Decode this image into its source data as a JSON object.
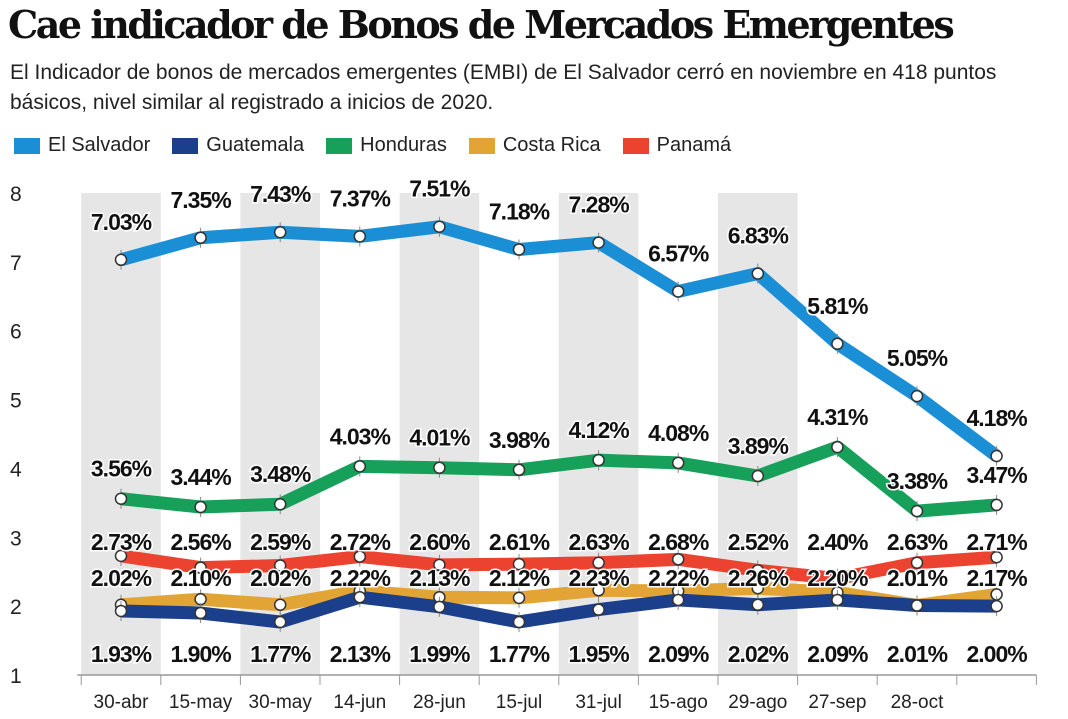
{
  "title": "Cae indicador de Bonos de Mercados Emergentes",
  "subtitle": "El Indicador de bonos de mercados emergentes (EMBI) de El Salvador cerró en noviembre en 418 puntos básicos, nivel similar al registrado a inicios de 2020.",
  "chart_data": {
    "type": "line",
    "title": "Cae indicador de Bonos de Mercados Emergentes",
    "categories": [
      "30-abr",
      "15-may",
      "30-may",
      "14-jun",
      "28-jun",
      "15-jul",
      "31-jul",
      "15-ago",
      "29-ago",
      "27-sep",
      "28-oct",
      ""
    ],
    "ylim": [
      1,
      8
    ],
    "yticks": [
      "1",
      "2",
      "3",
      "4",
      "5",
      "6",
      "7",
      "8"
    ],
    "grid": false,
    "legend": "top",
    "series": [
      {
        "name": "El Salvador",
        "color": "#1b8fd6",
        "values": [
          7.03,
          7.35,
          7.43,
          7.37,
          7.51,
          7.18,
          7.28,
          6.57,
          6.83,
          5.81,
          5.05,
          4.18
        ],
        "labels": [
          "7.03%",
          "7.35%",
          "7.43%",
          "7.37%",
          "7.51%",
          "7.18%",
          "7.28%",
          "6.57%",
          "6.83%",
          "5.81%",
          "5.05%",
          "4.18%"
        ]
      },
      {
        "name": "Guatemala",
        "color": "#1c3f8c",
        "values": [
          1.93,
          1.9,
          1.77,
          2.13,
          1.99,
          1.77,
          1.95,
          2.09,
          2.02,
          2.09,
          2.01,
          2.0
        ],
        "labels": [
          "1.93%",
          "1.90%",
          "1.77%",
          "2.13%",
          "1.99%",
          "1.77%",
          "1.95%",
          "2.09%",
          "2.02%",
          "2.09%",
          "2.01%",
          "2.00%"
        ]
      },
      {
        "name": "Honduras",
        "color": "#17a05a",
        "values": [
          3.56,
          3.44,
          3.48,
          4.03,
          4.01,
          3.98,
          4.12,
          4.08,
          3.89,
          4.31,
          3.38,
          3.47
        ],
        "labels": [
          "3.56%",
          "3.44%",
          "3.48%",
          "4.03%",
          "4.01%",
          "3.98%",
          "4.12%",
          "4.08%",
          "3.89%",
          "4.31%",
          "3.38%",
          "3.47%"
        ]
      },
      {
        "name": "Costa Rica",
        "color": "#e2a535",
        "values": [
          2.02,
          2.1,
          2.02,
          2.22,
          2.13,
          2.12,
          2.23,
          2.22,
          2.26,
          2.2,
          2.01,
          2.17
        ],
        "labels": [
          "2.02%",
          "2.10%",
          "2.02%",
          "2.22%",
          "2.13%",
          "2.12%",
          "2.23%",
          "2.22%",
          "2.26%",
          "2.20%",
          "2.01%",
          "2.17%"
        ]
      },
      {
        "name": "Panamá",
        "color": "#ec4330",
        "values": [
          2.73,
          2.56,
          2.59,
          2.72,
          2.6,
          2.61,
          2.63,
          2.68,
          2.52,
          2.4,
          2.63,
          2.71
        ],
        "labels": [
          "2.73%",
          "2.56%",
          "2.59%",
          "2.72%",
          "2.60%",
          "2.61%",
          "2.63%",
          "2.68%",
          "2.52%",
          "2.40%",
          "2.63%",
          "2.71%"
        ]
      }
    ]
  }
}
